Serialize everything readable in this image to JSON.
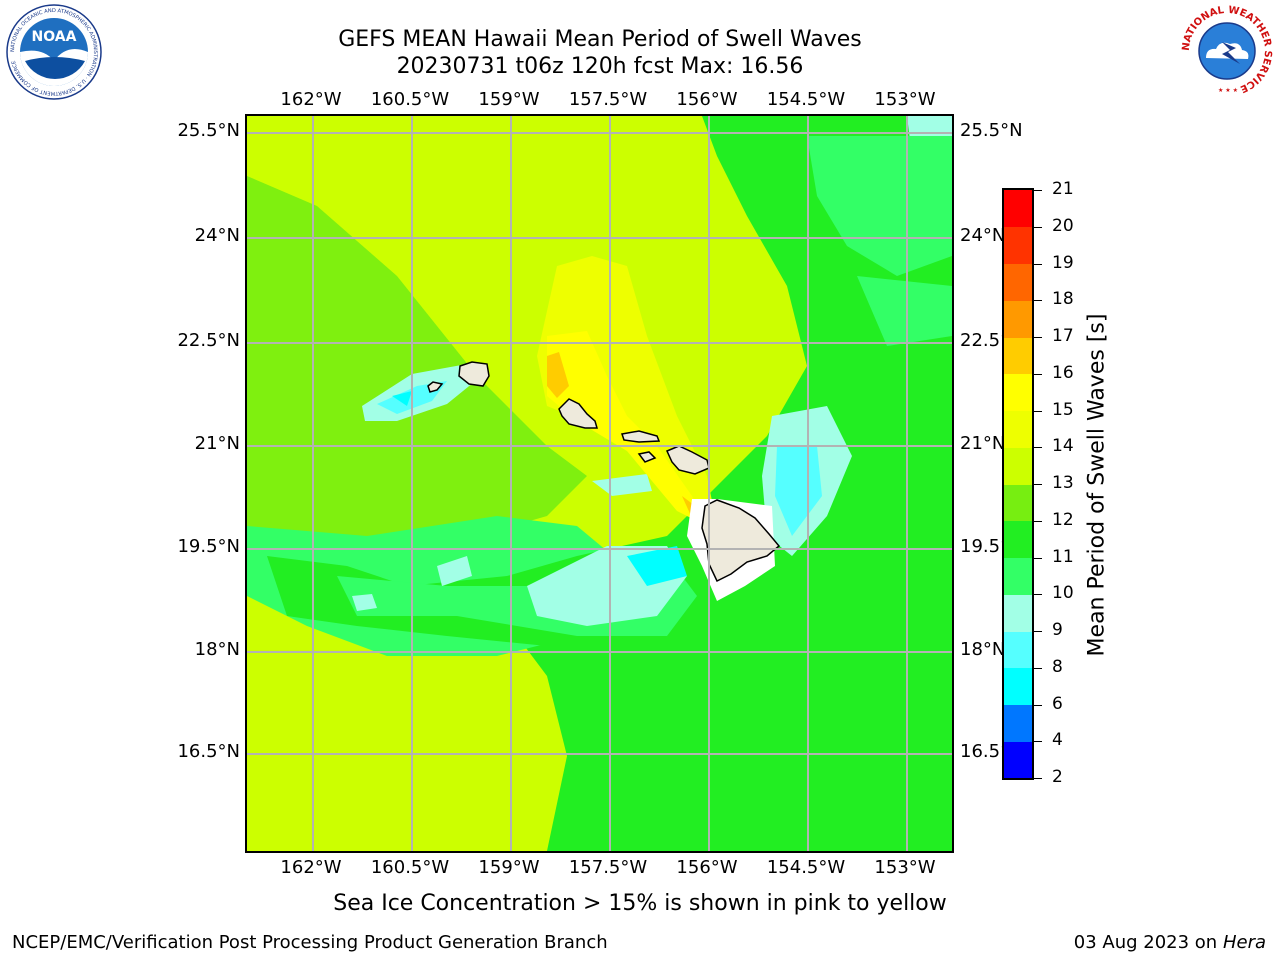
{
  "title_line1": "GEFS MEAN Hawaii Mean Period of Swell Waves",
  "title_line2": "20230731 t06z 120h fcst   Max: 16.56",
  "lon_labels": [
    "162°W",
    "160.5°W",
    "159°W",
    "157.5°W",
    "156°W",
    "154.5°W",
    "153°W"
  ],
  "lat_labels": [
    "25.5°N",
    "24°N",
    "22.5°N",
    "21°N",
    "19.5°N",
    "18°N",
    "16.5°N"
  ],
  "lat_labels_right": [
    "25.5°N",
    "24°N",
    "22.5°N",
    "21°N",
    "19.5°N",
    "18°N",
    "16.5°N"
  ],
  "colorbar": {
    "title": "Mean Period of Swell Waves [s]",
    "ticks": [
      "2",
      "4",
      "6",
      "8",
      "9",
      "10",
      "11",
      "12",
      "13",
      "14",
      "15",
      "16",
      "17",
      "18",
      "19",
      "20",
      "21"
    ],
    "colors": [
      "#0000ff",
      "#0077ff",
      "#00ffff",
      "#55ffff",
      "#a2ffe6",
      "#33ff66",
      "#22ee22",
      "#77ee11",
      "#ccff00",
      "#eeff00",
      "#ffff00",
      "#ffcc00",
      "#ff9900",
      "#ff6600",
      "#ff3300",
      "#ff0000"
    ]
  },
  "footnote": "Sea Ice Concentration > 15% is shown in pink to yellow",
  "credit": "NCEP/EMC/Verification Post Processing Product Generation Branch",
  "run_date": "03 Aug 2023 on",
  "run_host": "Hera",
  "logo_left": {
    "text": "NOAA",
    "ring_text": "NATIONAL OCEANIC AND ATMOSPHERIC ADMINISTRATION · U.S. DEPARTMENT OF COMMERCE"
  },
  "logo_right": {
    "ring_text": "NATIONAL WEATHER SERVICE"
  }
}
